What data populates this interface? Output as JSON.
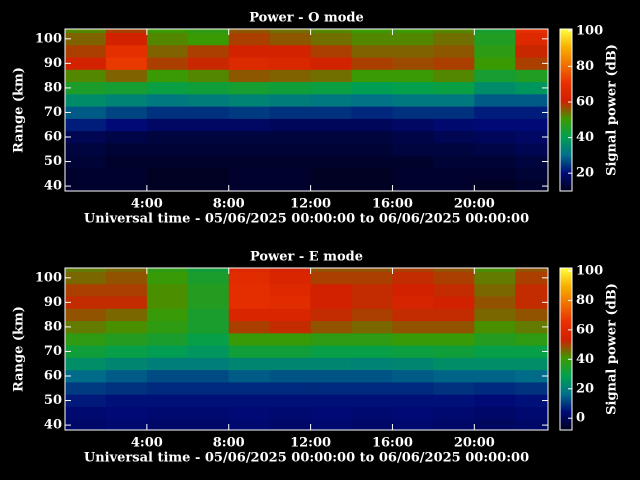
{
  "chart_data": [
    {
      "type": "heatmap",
      "title": "Power - O mode",
      "x_label": "Universal time - 05/06/2025 00:00:00 to 06/06/2025 00:00:00",
      "y_label": "Range (km)",
      "colorbar_label": "Signal power (dB)",
      "x": [
        0,
        2,
        4,
        6,
        8,
        10,
        12,
        14,
        16,
        18,
        20,
        22
      ],
      "y": [
        40,
        45,
        50,
        55,
        60,
        65,
        70,
        75,
        80,
        85,
        90,
        95,
        100,
        105
      ],
      "values": [
        [
          12,
          12,
          11,
          11,
          12,
          12,
          11,
          11,
          12,
          12,
          11,
          12
        ],
        [
          12,
          12,
          11,
          11,
          12,
          12,
          11,
          11,
          12,
          12,
          12,
          13
        ],
        [
          13,
          12,
          12,
          12,
          12,
          12,
          12,
          12,
          12,
          13,
          13,
          14
        ],
        [
          14,
          13,
          13,
          13,
          13,
          13,
          13,
          13,
          14,
          14,
          15,
          16
        ],
        [
          16,
          15,
          14,
          14,
          14,
          14,
          14,
          14,
          15,
          16,
          17,
          18
        ],
        [
          22,
          20,
          18,
          18,
          18,
          17,
          17,
          17,
          18,
          19,
          20,
          20
        ],
        [
          28,
          26,
          24,
          24,
          25,
          24,
          24,
          23,
          24,
          24,
          22,
          22
        ],
        [
          36,
          34,
          32,
          33,
          34,
          33,
          32,
          31,
          32,
          32,
          28,
          28
        ],
        [
          45,
          44,
          42,
          43,
          44,
          43,
          42,
          40,
          41,
          42,
          36,
          38
        ],
        [
          52,
          55,
          50,
          52,
          56,
          55,
          54,
          50,
          50,
          52,
          44,
          46
        ],
        [
          62,
          72,
          58,
          60,
          66,
          65,
          62,
          58,
          57,
          58,
          50,
          58
        ],
        [
          58,
          70,
          55,
          58,
          62,
          62,
          58,
          55,
          55,
          56,
          48,
          60
        ],
        [
          55,
          62,
          52,
          50,
          58,
          56,
          54,
          52,
          52,
          54,
          46,
          66
        ],
        [
          52,
          58,
          50,
          48,
          56,
          54,
          52,
          50,
          50,
          52,
          44,
          70
        ]
      ],
      "xlim": [
        0,
        23.6
      ],
      "ylim": [
        38,
        104
      ],
      "xticks": [
        {
          "value": 4,
          "label": "4:00"
        },
        {
          "value": 8,
          "label": "8:00"
        },
        {
          "value": 12,
          "label": "12:00"
        },
        {
          "value": 16,
          "label": "16:00"
        },
        {
          "value": 20,
          "label": "20:00"
        }
      ],
      "yticks": [
        40,
        50,
        60,
        70,
        80,
        90,
        100
      ],
      "clim": [
        10,
        101
      ],
      "cticks": [
        20,
        40,
        60,
        80,
        100
      ],
      "colormap": [
        "#00001a",
        "#000a78",
        "#00708a",
        "#00a050",
        "#3c9a00",
        "#d02000",
        "#e83000",
        "#f07000",
        "#f8b000",
        "#ffff40"
      ]
    },
    {
      "type": "heatmap",
      "title": "Power - E mode",
      "x_label": "Universal time - 05/06/2025 00:00:00 to 06/06/2025 00:00:00",
      "y_label": "Range (km)",
      "colorbar_label": "Signal power (dB)",
      "x": [
        0,
        2,
        4,
        6,
        8,
        10,
        12,
        14,
        16,
        18,
        20,
        22
      ],
      "y": [
        40,
        45,
        50,
        55,
        60,
        65,
        70,
        75,
        80,
        85,
        90,
        95,
        100,
        105
      ],
      "values": [
        [
          2,
          3,
          2,
          2,
          3,
          2,
          3,
          2,
          3,
          2,
          1,
          2
        ],
        [
          3,
          4,
          3,
          3,
          4,
          3,
          4,
          3,
          4,
          3,
          2,
          3
        ],
        [
          6,
          5,
          5,
          5,
          5,
          5,
          5,
          5,
          5,
          5,
          4,
          5
        ],
        [
          10,
          9,
          8,
          8,
          8,
          8,
          8,
          8,
          8,
          9,
          8,
          9
        ],
        [
          16,
          14,
          12,
          12,
          14,
          13,
          13,
          13,
          14,
          15,
          15,
          16
        ],
        [
          24,
          22,
          20,
          20,
          22,
          22,
          22,
          21,
          22,
          24,
          24,
          24
        ],
        [
          32,
          30,
          28,
          26,
          32,
          32,
          30,
          30,
          31,
          32,
          30,
          30
        ],
        [
          38,
          36,
          34,
          30,
          40,
          40,
          38,
          38,
          40,
          40,
          36,
          38
        ],
        [
          44,
          42,
          38,
          34,
          50,
          52,
          48,
          46,
          48,
          48,
          42,
          44
        ],
        [
          48,
          46,
          40,
          34,
          58,
          58,
          52,
          50,
          52,
          52,
          46,
          48
        ],
        [
          52,
          52,
          42,
          36,
          64,
          62,
          54,
          52,
          56,
          54,
          48,
          52
        ],
        [
          50,
          50,
          42,
          36,
          64,
          60,
          54,
          52,
          54,
          52,
          46,
          52
        ],
        [
          46,
          48,
          40,
          34,
          62,
          58,
          50,
          50,
          52,
          50,
          44,
          50
        ],
        [
          44,
          46,
          38,
          32,
          60,
          56,
          48,
          48,
          50,
          48,
          42,
          48
        ]
      ],
      "xlim": [
        0,
        23.6
      ],
      "ylim": [
        38,
        104
      ],
      "xticks": [
        {
          "value": 4,
          "label": "4:00"
        },
        {
          "value": 8,
          "label": "8:00"
        },
        {
          "value": 12,
          "label": "12:00"
        },
        {
          "value": 16,
          "label": "16:00"
        },
        {
          "value": 20,
          "label": "20:00"
        }
      ],
      "yticks": [
        40,
        50,
        60,
        70,
        80,
        90,
        100
      ],
      "clim": [
        -8,
        102
      ],
      "cticks": [
        0,
        20,
        40,
        60,
        80,
        100
      ],
      "colormap": [
        "#00001a",
        "#000a78",
        "#00708a",
        "#00a050",
        "#3c9a00",
        "#d02000",
        "#e83000",
        "#f07000",
        "#f8b000",
        "#ffff40"
      ]
    }
  ]
}
